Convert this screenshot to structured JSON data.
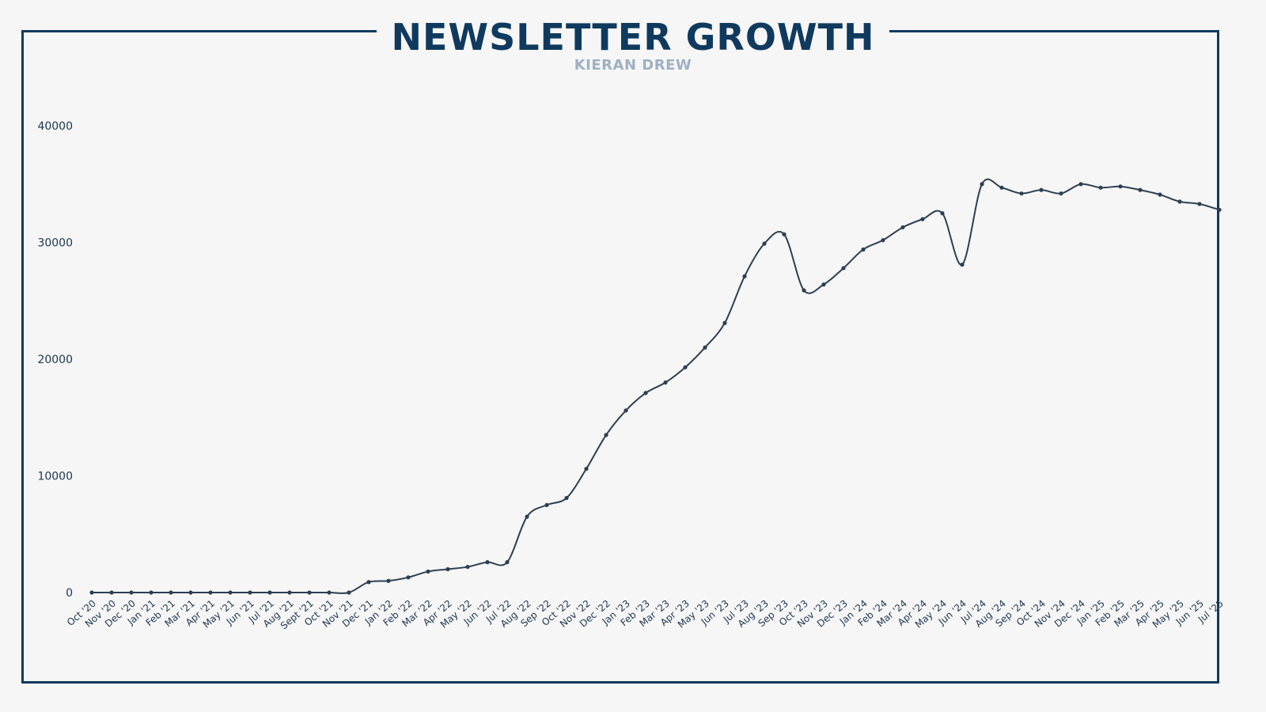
{
  "colors": {
    "frame": "#0f3a5e",
    "title": "#0f3a5e",
    "subtitle": "#9fb0c3",
    "line": "#2d3f52",
    "background": "#f6f6f6"
  },
  "chart_data": {
    "type": "line",
    "title": "NEWSLETTER GROWTH",
    "subtitle": "KIERAN DREW",
    "xlabel": "",
    "ylabel": "",
    "ylim": [
      0,
      40000
    ],
    "yticks": [
      0,
      10000,
      20000,
      30000,
      40000
    ],
    "grid": false,
    "legend": "none",
    "categories": [
      "Oct '20",
      "Nov '20",
      "Dec '20",
      "Jan '21",
      "Feb '21",
      "Mar '21",
      "Apr '21",
      "May '21",
      "Jun '21",
      "Jul '21",
      "Aug '21",
      "Sept '21",
      "Oct '21",
      "Nov '21",
      "Dec '21",
      "Jan '22",
      "Feb '22",
      "Mar '22",
      "Apr '22",
      "May '22",
      "Jun '22",
      "Jul '22",
      "Aug '22",
      "Sep '22",
      "Oct '22",
      "Nov '22",
      "Dec '22",
      "Jan '23",
      "Feb '23",
      "Mar '23",
      "Apr '23",
      "May '23",
      "Jun '23",
      "Jul '23",
      "Aug '23",
      "Sep '23",
      "Oct '23",
      "Nov '23",
      "Dec '23",
      "Jan '24",
      "Feb '24",
      "Mar '24",
      "Apr '24",
      "May '24",
      "Jun '24",
      "Jul '24",
      "Aug '24",
      "Sep '24",
      "Oct '24",
      "Nov '24",
      "Dec '24",
      "Jan '25",
      "Feb '25",
      "Mar '25",
      "Apr '25",
      "May '25",
      "Jun '25",
      "Jul '25"
    ],
    "series": [
      {
        "values": [
          0,
          0,
          0,
          0,
          0,
          0,
          0,
          0,
          0,
          0,
          0,
          0,
          0,
          0,
          900,
          1000,
          1300,
          1800,
          2000,
          2200,
          2600,
          2600,
          6500,
          7500,
          8100,
          10600,
          13500,
          15600,
          17100,
          18000,
          19300,
          21000,
          23100,
          27100,
          29900,
          30700,
          25900,
          26400,
          27800,
          29400,
          30200,
          31300,
          32000,
          32500,
          28100,
          35000,
          34700,
          34200,
          34500,
          34200,
          35000,
          34700,
          34800,
          34500,
          34100,
          33500,
          33300,
          32800
        ]
      }
    ]
  }
}
